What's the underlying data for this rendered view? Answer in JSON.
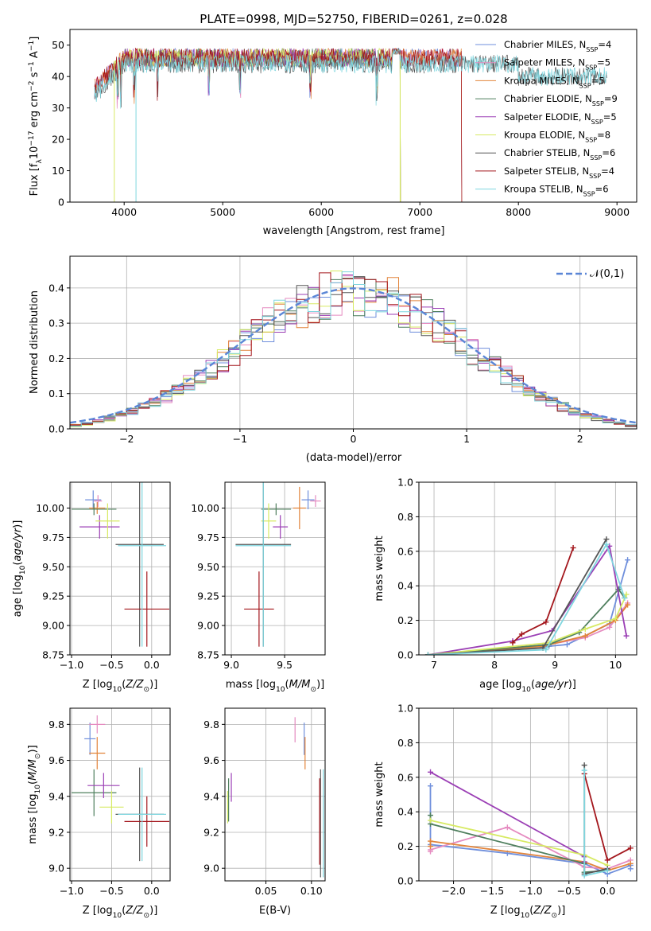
{
  "figure": {
    "title": "PLATE=0998, MJD=52750, FIBERID=0261, z=0.028"
  },
  "colors": {
    "Chabrier MILES": "#6f8fdc",
    "Salpeter MILES": "#e58bc0",
    "Kroupa MILES": "#e2843a",
    "Chabrier ELODIE": "#4f7f5e",
    "Salpeter ELODIE": "#9b3fb5",
    "Kroupa ELODIE": "#d7ea63",
    "Chabrier STELIB": "#555555",
    "Salpeter STELIB": "#a3161c",
    "Kroupa STELIB": "#7fd6df"
  },
  "chart_data": [
    {
      "id": "spectrum",
      "type": "line",
      "title": "PLATE=0998, MJD=52750, FIBERID=0261, z=0.028",
      "xlabel": "wavelength [Angstrom, rest frame]",
      "ylabel": "Flux [f_λ 10^-17 erg cm^-2 s^-1 A^-1]",
      "xlim": [
        3450,
        9200
      ],
      "ylim": [
        0,
        55
      ],
      "xticks": [
        4000,
        5000,
        6000,
        7000,
        8000,
        9000
      ],
      "yticks": [
        0,
        10,
        20,
        30,
        40,
        50
      ],
      "grid": false,
      "legend_position": "top-right",
      "series": [
        {
          "name": "Chabrier MILES, N_SSP=4",
          "x_range": [
            3700,
            7420
          ],
          "level": 46
        },
        {
          "name": "Salpeter MILES, N_SSP=5",
          "x_range": [
            3700,
            7420
          ],
          "level": 46
        },
        {
          "name": "Kroupa MILES, N_SSP=5",
          "x_range": [
            3700,
            7420
          ],
          "level": 46
        },
        {
          "name": "Chabrier ELODIE, N_SSP=9",
          "x_range": [
            3900,
            6800
          ],
          "level": 46
        },
        {
          "name": "Salpeter ELODIE, N_SSP=5",
          "x_range": [
            3900,
            6800
          ],
          "level": 46
        },
        {
          "name": "Kroupa ELODIE, N_SSP=8",
          "x_range": [
            3900,
            6800
          ],
          "level": 46
        },
        {
          "name": "Chabrier STELIB, N_SSP=6",
          "x_range": [
            3700,
            8900
          ],
          "level": 44
        },
        {
          "name": "Salpeter STELIB, N_SSP=4",
          "x_range": [
            3700,
            7420
          ],
          "level": 46
        },
        {
          "name": "Kroupa STELIB, N_SSP=6",
          "x_range": [
            3700,
            8900
          ],
          "level": 44
        }
      ]
    },
    {
      "id": "residuals",
      "type": "line",
      "xlabel": "(data-model)/error",
      "ylabel": "Normed distribution",
      "xlim": [
        -2.5,
        2.5
      ],
      "ylim": [
        0,
        0.49
      ],
      "xticks": [
        -2,
        -1,
        0,
        1,
        2
      ],
      "yticks": [
        0.0,
        0.1,
        0.2,
        0.3,
        0.4
      ],
      "grid": true,
      "legend_position": "top-right",
      "reference": {
        "name": "𝒩(0,1)",
        "mean": 0,
        "sigma": 1
      },
      "bin_width": 0.1
    },
    {
      "id": "age_vs_Z",
      "type": "scatter",
      "xlabel": "Z [log10(Z/Z⊙)]",
      "ylabel": "age [log10(age/yr)]",
      "xlim": [
        -1.02,
        0.23
      ],
      "ylim": [
        8.75,
        10.22
      ],
      "xticks": [
        -1.0,
        -0.5,
        0.0
      ],
      "yticks": [
        8.75,
        9.0,
        9.25,
        9.5,
        9.75,
        10.0
      ],
      "grid": true,
      "points": [
        {
          "model": "Chabrier MILES",
          "x": -0.73,
          "y": 10.07,
          "xerr": 0.1,
          "yerr": 0.08
        },
        {
          "model": "Salpeter MILES",
          "x": -0.67,
          "y": 10.06,
          "xerr": 0.05,
          "yerr": 0.05
        },
        {
          "model": "Kroupa MILES",
          "x": -0.68,
          "y": 10.0,
          "xerr": 0.1,
          "yerr": 0.05
        },
        {
          "model": "Chabrier ELODIE",
          "x": -0.72,
          "y": 9.99,
          "xerr": 0.28,
          "yerr": 0.05
        },
        {
          "model": "Salpeter ELODIE",
          "x": -0.65,
          "y": 9.84,
          "xerr": 0.25,
          "yerr": 0.1
        },
        {
          "model": "Kroupa ELODIE",
          "x": -0.55,
          "y": 9.89,
          "xerr": 0.15,
          "yerr": 0.15
        },
        {
          "model": "Chabrier STELIB",
          "x": -0.15,
          "y": 9.69,
          "xerr": 0.3,
          "yerr": 0.87
        },
        {
          "model": "Salpeter STELIB",
          "x": -0.06,
          "y": 9.14,
          "xerr": 0.28,
          "yerr": 0.32
        },
        {
          "model": "Kroupa STELIB",
          "x": -0.12,
          "y": 9.68,
          "xerr": 0.3,
          "yerr": 0.86
        }
      ]
    },
    {
      "id": "age_vs_mass",
      "type": "scatter",
      "xlabel": "mass [log10(M/M⊙)]",
      "ylabel": "",
      "xlim": [
        8.94,
        9.88
      ],
      "ylim": [
        8.75,
        10.22
      ],
      "xticks": [
        9.0,
        9.5
      ],
      "yticks": [
        8.75,
        9.0,
        9.25,
        9.5,
        9.75,
        10.0
      ],
      "grid": true,
      "points": [
        {
          "model": "Chabrier MILES",
          "x": 9.72,
          "y": 10.07,
          "xerr": 0.06,
          "yerr": 0.08
        },
        {
          "model": "Salpeter MILES",
          "x": 9.79,
          "y": 10.06,
          "xerr": 0.05,
          "yerr": 0.05
        },
        {
          "model": "Kroupa MILES",
          "x": 9.64,
          "y": 10.0,
          "xerr": 0.06,
          "yerr": 0.18
        },
        {
          "model": "Chabrier ELODIE",
          "x": 9.42,
          "y": 9.99,
          "xerr": 0.14,
          "yerr": 0.05
        },
        {
          "model": "Salpeter ELODIE",
          "x": 9.46,
          "y": 9.84,
          "xerr": 0.07,
          "yerr": 0.1
        },
        {
          "model": "Kroupa ELODIE",
          "x": 9.35,
          "y": 9.89,
          "xerr": 0.07,
          "yerr": 0.15
        },
        {
          "model": "Chabrier STELIB",
          "x": 9.3,
          "y": 9.69,
          "xerr": 0.26,
          "yerr": 0.87
        },
        {
          "model": "Salpeter STELIB",
          "x": 9.26,
          "y": 9.14,
          "xerr": 0.14,
          "yerr": 0.32
        },
        {
          "model": "Kroupa STELIB",
          "x": 9.3,
          "y": 9.68,
          "xerr": 0.26,
          "yerr": 0.86
        }
      ]
    },
    {
      "id": "weight_vs_age",
      "type": "line",
      "xlabel": "age [log10(age/yr)]",
      "ylabel": "mass weight",
      "xlim": [
        6.75,
        10.35
      ],
      "ylim": [
        0,
        1
      ],
      "xticks": [
        7,
        8,
        9,
        10
      ],
      "yticks": [
        0.0,
        0.2,
        0.4,
        0.6,
        0.8,
        1.0
      ],
      "grid": true,
      "series": [
        {
          "name": "Chabrier MILES",
          "x": [
            6.9,
            8.4,
            8.9,
            9.2,
            9.9,
            10.2
          ],
          "y": [
            0.0,
            0.04,
            0.05,
            0.06,
            0.18,
            0.55
          ]
        },
        {
          "name": "Salpeter MILES",
          "x": [
            6.9,
            8.9,
            9.5,
            9.9,
            10.2
          ],
          "y": [
            0.0,
            0.06,
            0.1,
            0.16,
            0.3
          ]
        },
        {
          "name": "Kroupa MILES",
          "x": [
            6.9,
            8.8,
            9.5,
            10.0,
            10.2
          ],
          "y": [
            0.0,
            0.05,
            0.11,
            0.2,
            0.29
          ]
        },
        {
          "name": "Chabrier ELODIE",
          "x": [
            6.9,
            8.9,
            9.4,
            10.05,
            10.15
          ],
          "y": [
            0.0,
            0.06,
            0.13,
            0.38,
            0.33
          ]
        },
        {
          "name": "Salpeter ELODIE",
          "x": [
            6.9,
            8.3,
            8.95,
            9.9,
            10.18
          ],
          "y": [
            0.0,
            0.08,
            0.14,
            0.63,
            0.11
          ]
        },
        {
          "name": "Kroupa ELODIE",
          "x": [
            6.9,
            8.9,
            9.5,
            10.0,
            10.18
          ],
          "y": [
            0.0,
            0.07,
            0.15,
            0.21,
            0.35
          ]
        },
        {
          "name": "Chabrier STELIB",
          "x": [
            6.9,
            8.8,
            9.85
          ],
          "y": [
            0.0,
            0.04,
            0.67
          ]
        },
        {
          "name": "Salpeter STELIB",
          "x": [
            8.3,
            8.45,
            8.85,
            9.3
          ],
          "y": [
            0.07,
            0.12,
            0.19,
            0.62
          ]
        },
        {
          "name": "Kroupa STELIB",
          "x": [
            6.9,
            8.85,
            9.85,
            10.15
          ],
          "y": [
            0.0,
            0.03,
            0.64,
            0.33
          ]
        }
      ]
    },
    {
      "id": "mass_vs_Z",
      "type": "scatter",
      "xlabel": "Z [log10(Z/Z⊙)]",
      "ylabel": "mass [log10(M/M⊙)]",
      "xlim": [
        -1.02,
        0.23
      ],
      "ylim": [
        8.93,
        9.89
      ],
      "xticks": [
        -1.0,
        -0.5,
        0.0
      ],
      "yticks": [
        9.0,
        9.2,
        9.4,
        9.6,
        9.8
      ],
      "grid": true,
      "points": [
        {
          "model": "Chabrier MILES",
          "x": -0.77,
          "y": 9.72,
          "xerr": 0.07,
          "yerr": 0.09
        },
        {
          "model": "Salpeter MILES",
          "x": -0.68,
          "y": 9.8,
          "xerr": 0.1,
          "yerr": 0.05
        },
        {
          "model": "Kroupa MILES",
          "x": -0.68,
          "y": 9.64,
          "xerr": 0.1,
          "yerr": 0.09
        },
        {
          "model": "Chabrier ELODIE",
          "x": -0.72,
          "y": 9.42,
          "xerr": 0.28,
          "yerr": 0.13
        },
        {
          "model": "Salpeter ELODIE",
          "x": -0.6,
          "y": 9.46,
          "xerr": 0.2,
          "yerr": 0.07
        },
        {
          "model": "Kroupa ELODIE",
          "x": -0.5,
          "y": 9.34,
          "xerr": 0.15,
          "yerr": 0.09
        },
        {
          "model": "Chabrier STELIB",
          "x": -0.15,
          "y": 9.3,
          "xerr": 0.3,
          "yerr": 0.26
        },
        {
          "model": "Salpeter STELIB",
          "x": -0.06,
          "y": 9.26,
          "xerr": 0.28,
          "yerr": 0.14
        },
        {
          "model": "Kroupa STELIB",
          "x": -0.12,
          "y": 9.3,
          "xerr": 0.3,
          "yerr": 0.26
        }
      ]
    },
    {
      "id": "mass_vs_ebv",
      "type": "scatter",
      "xlabel": "E(B-V)",
      "ylabel": "",
      "xlim": [
        0.005,
        0.115
      ],
      "ylim": [
        8.93,
        9.89
      ],
      "xticks": [
        0.05,
        0.1
      ],
      "yticks": [
        9.0,
        9.2,
        9.4,
        9.6,
        9.8
      ],
      "grid": true,
      "points": [
        {
          "model": "Chabrier MILES",
          "x": 0.092,
          "y": 9.72,
          "yerr": 0.09
        },
        {
          "model": "Salpeter MILES",
          "x": 0.082,
          "y": 9.77,
          "yerr": 0.07
        },
        {
          "model": "Kroupa MILES",
          "x": 0.093,
          "y": 9.64,
          "yerr": 0.09
        },
        {
          "model": "Chabrier ELODIE",
          "x": 0.009,
          "y": 9.38,
          "yerr": 0.12
        },
        {
          "model": "Salpeter ELODIE",
          "x": 0.012,
          "y": 9.45,
          "yerr": 0.08
        },
        {
          "model": "Kroupa ELODIE",
          "x": 0.008,
          "y": 9.34,
          "yerr": 0.09
        },
        {
          "model": "Chabrier STELIB",
          "x": 0.11,
          "y": 9.25,
          "yerr": 0.3
        },
        {
          "model": "Salpeter STELIB",
          "x": 0.109,
          "y": 9.26,
          "yerr": 0.24
        },
        {
          "model": "Kroupa STELIB",
          "x": 0.113,
          "y": 9.25,
          "yerr": 0.3
        }
      ]
    },
    {
      "id": "weight_vs_Z",
      "type": "line",
      "xlabel": "Z [log10(Z/Z⊙)]",
      "ylabel": "mass weight",
      "xlim": [
        -2.45,
        0.38
      ],
      "ylim": [
        0,
        1
      ],
      "xticks": [
        -2.0,
        -1.5,
        -1.0,
        -0.5,
        0.0
      ],
      "yticks": [
        0.0,
        0.2,
        0.4,
        0.6,
        0.8,
        1.0
      ],
      "grid": true,
      "series": [
        {
          "name": "Chabrier MILES",
          "x": [
            -2.3,
            -2.3,
            -1.3,
            -0.3,
            0.0,
            0.3,
            0.3
          ],
          "y": [
            0.55,
            0.21,
            0.16,
            0.1,
            0.04,
            0.09,
            0.07
          ]
        },
        {
          "name": "Salpeter MILES",
          "x": [
            -2.3,
            -2.3,
            -1.3,
            -0.3,
            0.0,
            0.3
          ],
          "y": [
            0.17,
            0.18,
            0.31,
            0.08,
            0.07,
            0.12
          ]
        },
        {
          "name": "Kroupa MILES",
          "x": [
            -2.3,
            -2.3,
            -0.3,
            0.0,
            0.3
          ],
          "y": [
            0.2,
            0.23,
            0.11,
            0.06,
            0.1
          ]
        },
        {
          "name": "Chabrier ELODIE",
          "x": [
            -2.3,
            -2.3,
            -0.3,
            -0.3,
            0.0
          ],
          "y": [
            0.38,
            0.33,
            0.1,
            0.05,
            0.06
          ]
        },
        {
          "name": "Salpeter ELODIE",
          "x": [
            -2.3,
            -0.3,
            -0.3
          ],
          "y": [
            0.63,
            0.14,
            0.11
          ]
        },
        {
          "name": "Kroupa ELODIE",
          "x": [
            -2.3,
            -0.3,
            0.0
          ],
          "y": [
            0.35,
            0.15,
            0.09
          ]
        },
        {
          "name": "Chabrier STELIB",
          "x": [
            -0.3,
            -0.3,
            0.0
          ],
          "y": [
            0.67,
            0.04,
            0.07
          ]
        },
        {
          "name": "Salpeter STELIB",
          "x": [
            -0.3,
            0.0,
            0.3
          ],
          "y": [
            0.62,
            0.12,
            0.19
          ]
        },
        {
          "name": "Kroupa STELIB",
          "x": [
            -0.3,
            -0.3,
            0.0
          ],
          "y": [
            0.64,
            0.03,
            0.06
          ]
        }
      ]
    }
  ]
}
